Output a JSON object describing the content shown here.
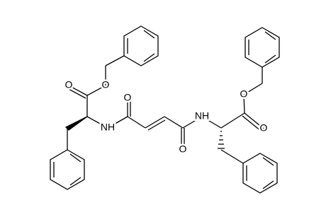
{
  "atoms": [
    {
      "label": "O"
    },
    {
      "label": "O"
    },
    {
      "label": "NH"
    },
    {
      "label": "O"
    },
    {
      "label": "O"
    },
    {
      "label": "NH"
    },
    {
      "label": "O"
    },
    {
      "label": "O"
    }
  ]
}
